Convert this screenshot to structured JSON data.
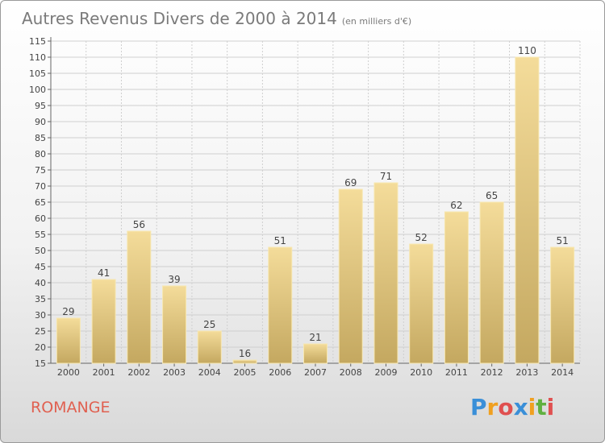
{
  "header": {
    "title": "Autres Revenus Divers de 2000 à 2014",
    "unit": "(en milliers d'€)"
  },
  "footer": {
    "commune": "ROMANGE",
    "logo": {
      "letters": [
        "P",
        "r",
        "o",
        "x",
        "i",
        "t",
        "i"
      ],
      "colors": [
        "#3a8fd8",
        "#f0a020",
        "#e05050",
        "#3a8fd8",
        "#f0a020",
        "#60b040",
        "#e05050"
      ]
    }
  },
  "chart_data": {
    "type": "bar",
    "title": "Autres Revenus Divers de 2000 à 2014",
    "categories": [
      "2000",
      "2001",
      "2002",
      "2003",
      "2004",
      "2005",
      "2006",
      "2007",
      "2008",
      "2009",
      "2010",
      "2011",
      "2012",
      "2013",
      "2014"
    ],
    "values": [
      29,
      41,
      56,
      39,
      25,
      16,
      51,
      21,
      69,
      71,
      52,
      62,
      65,
      110,
      51
    ],
    "ylim": [
      15,
      115
    ],
    "yticks": [
      15,
      20,
      25,
      30,
      35,
      40,
      45,
      50,
      55,
      60,
      65,
      70,
      75,
      80,
      85,
      90,
      95,
      100,
      105,
      110,
      115
    ],
    "grid": true,
    "bar_color": "#e8cf8a"
  }
}
